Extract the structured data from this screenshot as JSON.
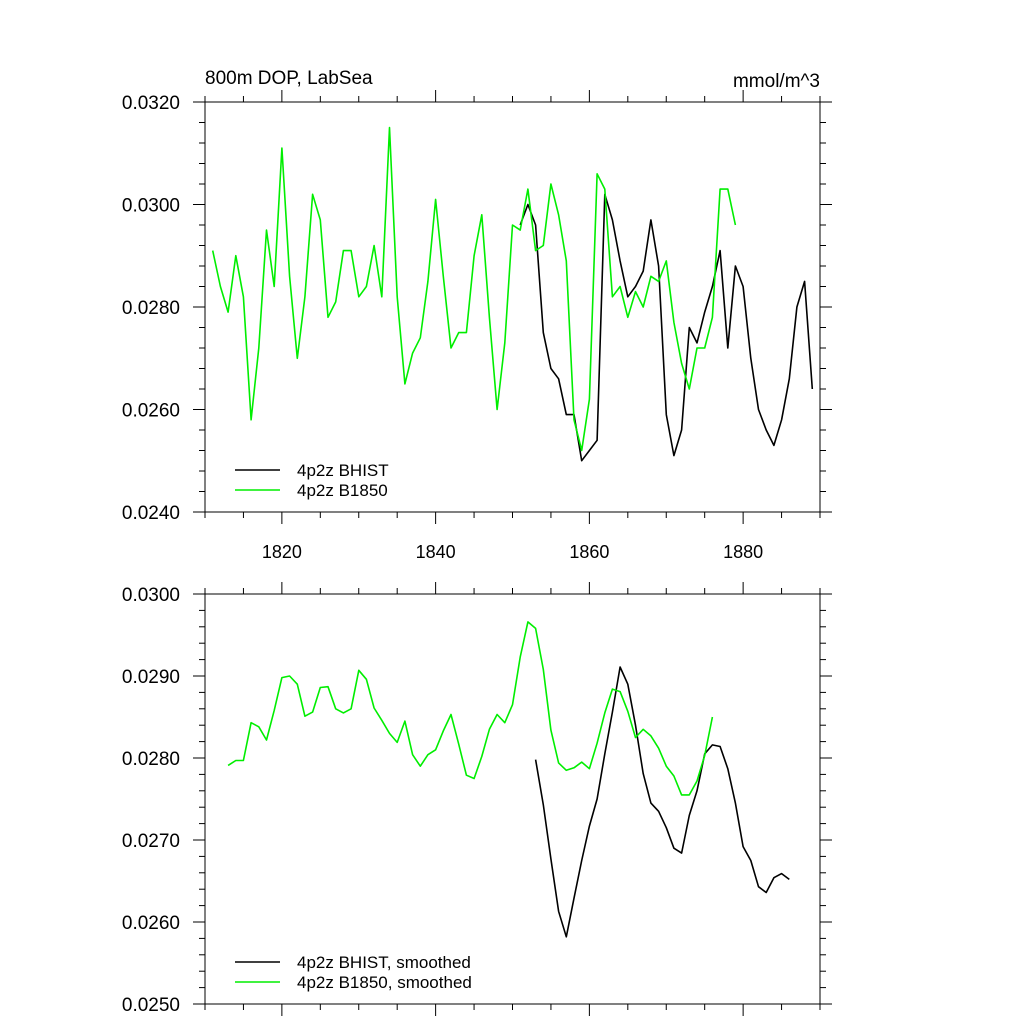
{
  "chart_data": [
    {
      "type": "line",
      "title": "800m DOP, LabSea",
      "units": "mmol/m^3",
      "xlabel": "",
      "ylabel": "",
      "xlim": [
        1810,
        1890
      ],
      "ylim": [
        0.024,
        0.032
      ],
      "x_ticks": [
        "1820",
        "1840",
        "1860",
        "1880"
      ],
      "y_ticks": [
        "0.0240",
        "0.0260",
        "0.0280",
        "0.0300",
        "0.0320"
      ],
      "legend_position": "bottom-left",
      "series": [
        {
          "name": "4p2z BHIST",
          "color": "#000000",
          "x": [
            1851,
            1852,
            1853,
            1854,
            1855,
            1856,
            1857,
            1858,
            1859,
            1860,
            1861,
            1862,
            1863,
            1864,
            1865,
            1866,
            1867,
            1868,
            1869,
            1870,
            1871,
            1872,
            1873,
            1874,
            1875,
            1876,
            1877,
            1878,
            1879,
            1880,
            1881,
            1882,
            1883,
            1884,
            1885,
            1886,
            1887,
            1888,
            1889
          ],
          "y": [
            0.0296,
            0.03,
            0.0296,
            0.0275,
            0.0268,
            0.0266,
            0.0259,
            0.0259,
            0.025,
            0.0252,
            0.0254,
            0.0302,
            0.0297,
            0.0289,
            0.0282,
            0.0284,
            0.0287,
            0.0297,
            0.0288,
            0.0259,
            0.0251,
            0.0256,
            0.0276,
            0.0273,
            0.0279,
            0.0284,
            0.0291,
            0.0272,
            0.0288,
            0.0284,
            0.027,
            0.026,
            0.0256,
            0.0253,
            0.0258,
            0.0266,
            0.028,
            0.0285,
            0.0264
          ]
        },
        {
          "name": "4p2z B1850",
          "color": "#00ee00",
          "x": [
            1811,
            1812,
            1813,
            1814,
            1815,
            1816,
            1817,
            1818,
            1819,
            1820,
            1821,
            1822,
            1823,
            1824,
            1825,
            1826,
            1827,
            1828,
            1829,
            1830,
            1831,
            1832,
            1833,
            1834,
            1835,
            1836,
            1837,
            1838,
            1839,
            1840,
            1841,
            1842,
            1843,
            1844,
            1845,
            1846,
            1847,
            1848,
            1849,
            1850,
            1851,
            1852,
            1853,
            1854,
            1855,
            1856,
            1857,
            1858,
            1859,
            1860,
            1861,
            1862,
            1863,
            1864,
            1865,
            1866,
            1867,
            1868,
            1869,
            1870,
            1871,
            1872,
            1873,
            1874,
            1875,
            1876,
            1877,
            1878,
            1879
          ],
          "y": [
            0.0291,
            0.0284,
            0.0279,
            0.029,
            0.0282,
            0.0258,
            0.0272,
            0.0295,
            0.0284,
            0.0311,
            0.0286,
            0.027,
            0.0282,
            0.0302,
            0.0297,
            0.0278,
            0.0281,
            0.0291,
            0.0291,
            0.0282,
            0.0284,
            0.0292,
            0.0282,
            0.0315,
            0.0282,
            0.0265,
            0.0271,
            0.0274,
            0.0285,
            0.0301,
            0.0286,
            0.0272,
            0.0275,
            0.0275,
            0.029,
            0.0298,
            0.0278,
            0.026,
            0.0273,
            0.0296,
            0.0295,
            0.0303,
            0.0291,
            0.0292,
            0.0304,
            0.0298,
            0.0289,
            0.0258,
            0.0252,
            0.0262,
            0.0306,
            0.0303,
            0.0282,
            0.0284,
            0.0278,
            0.0283,
            0.028,
            0.0286,
            0.0285,
            0.0289,
            0.0277,
            0.0269,
            0.0264,
            0.0272,
            0.0272,
            0.0278,
            0.0303,
            0.0303,
            0.0296
          ]
        }
      ]
    },
    {
      "type": "line",
      "title": "",
      "xlabel": "",
      "ylabel": "",
      "xlim": [
        1810,
        1890
      ],
      "ylim": [
        0.025,
        0.03
      ],
      "x_ticks": [],
      "y_ticks": [
        "0.0250",
        "0.0260",
        "0.0270",
        "0.0280",
        "0.0290",
        "0.0300"
      ],
      "legend_position": "bottom-left",
      "series": [
        {
          "name": "4p2z BHIST, smoothed",
          "color": "#000000",
          "x": [
            1853,
            1854,
            1855,
            1856,
            1857,
            1858,
            1859,
            1860,
            1861,
            1862,
            1863,
            1864,
            1865,
            1866,
            1867,
            1868,
            1869,
            1870,
            1871,
            1872,
            1873,
            1874,
            1875,
            1876,
            1877,
            1878,
            1879,
            1880,
            1881,
            1882,
            1883,
            1884,
            1885,
            1886
          ],
          "y": [
            0.02798,
            0.02743,
            0.02677,
            0.02613,
            0.02582,
            0.02629,
            0.02675,
            0.02717,
            0.0275,
            0.02805,
            0.02856,
            0.02911,
            0.0289,
            0.0284,
            0.02781,
            0.02745,
            0.02735,
            0.02715,
            0.0269,
            0.02684,
            0.0273,
            0.0276,
            0.02805,
            0.02816,
            0.02814,
            0.02787,
            0.02745,
            0.02692,
            0.02675,
            0.02643,
            0.02636,
            0.02654,
            0.02659,
            0.02652
          ]
        },
        {
          "name": "4p2z B1850, smoothed",
          "color": "#00ee00",
          "x": [
            1813,
            1814,
            1815,
            1816,
            1817,
            1818,
            1819,
            1820,
            1821,
            1822,
            1823,
            1824,
            1825,
            1826,
            1827,
            1828,
            1829,
            1830,
            1831,
            1832,
            1833,
            1834,
            1835,
            1836,
            1837,
            1838,
            1839,
            1840,
            1841,
            1842,
            1843,
            1844,
            1845,
            1846,
            1847,
            1848,
            1849,
            1850,
            1851,
            1852,
            1853,
            1854,
            1855,
            1856,
            1857,
            1858,
            1859,
            1860,
            1861,
            1862,
            1863,
            1864,
            1865,
            1866,
            1867,
            1868,
            1869,
            1870,
            1871,
            1872,
            1873,
            1874,
            1875,
            1876
          ],
          "y": [
            0.02791,
            0.02797,
            0.02797,
            0.02843,
            0.02838,
            0.02822,
            0.02858,
            0.02898,
            0.029,
            0.0289,
            0.02851,
            0.02856,
            0.02886,
            0.02887,
            0.0286,
            0.02855,
            0.0286,
            0.02907,
            0.02896,
            0.02861,
            0.02846,
            0.0283,
            0.02819,
            0.02845,
            0.02804,
            0.0279,
            0.02804,
            0.0281,
            0.02833,
            0.02853,
            0.02817,
            0.02779,
            0.02775,
            0.02802,
            0.02835,
            0.02853,
            0.02843,
            0.02865,
            0.02923,
            0.02966,
            0.02958,
            0.02908,
            0.02834,
            0.02794,
            0.02785,
            0.02788,
            0.02795,
            0.02787,
            0.02818,
            0.02855,
            0.02884,
            0.02881,
            0.02857,
            0.02825,
            0.02835,
            0.02827,
            0.02812,
            0.0279,
            0.02778,
            0.02755,
            0.02755,
            0.02772,
            0.02803,
            0.0285
          ]
        }
      ]
    }
  ]
}
